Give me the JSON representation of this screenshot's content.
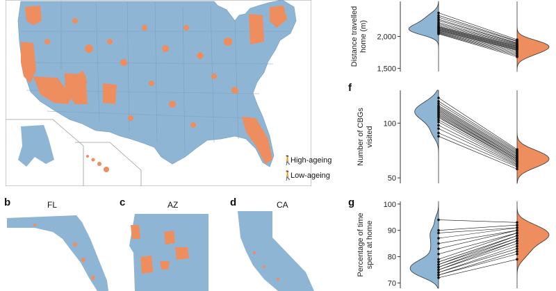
{
  "colors": {
    "high": "#ee8d5e",
    "low": "#8fb5d4",
    "line": "#111111",
    "map_border": "#9ab3c5"
  },
  "map_panel": {
    "legend": {
      "high_label": "High-ageing",
      "low_label": "Low-ageing",
      "high_icon": "walking-person-icon",
      "low_icon": "walking-person-icon"
    }
  },
  "inset_maps": [
    {
      "letter": "b",
      "title": "FL"
    },
    {
      "letter": "c",
      "title": "AZ"
    },
    {
      "letter": "d",
      "title": "CA"
    }
  ],
  "chart_data": [
    {
      "type": "scatter",
      "panel": "",
      "ylabel": "Distance travelled from home (m)",
      "ylabel_lines": [
        "Distance travelled",
        "home (m)"
      ],
      "yticks": [
        1500,
        2000
      ],
      "ytick_labels": [
        "1,500",
        "2,000"
      ],
      "ylim": [
        1450,
        2550
      ],
      "groups": [
        "High-ageing",
        "Low-ageing"
      ],
      "left_values": [
        2370,
        2330,
        2300,
        2270,
        2250,
        2220,
        2200,
        2180,
        2160,
        2150,
        2140,
        2130,
        2120,
        2110,
        2100,
        2090,
        2080,
        2070,
        2060,
        2050,
        2040
      ],
      "right_values": [
        1950,
        1930,
        1920,
        1900,
        1890,
        1880,
        1870,
        1860,
        1850,
        1840,
        1830,
        1820,
        1810,
        1800,
        1790,
        1780,
        1760,
        1740,
        1720,
        1700,
        1680
      ]
    },
    {
      "type": "scatter",
      "panel": "f",
      "ylabel": "Number of CBGs visited",
      "ylabel_lines": [
        "Number of CBGs",
        "visited"
      ],
      "yticks": [
        50,
        100
      ],
      "ytick_labels": [
        "50",
        "100"
      ],
      "ylim": [
        45,
        130
      ],
      "groups": [
        "High-ageing",
        "Low-ageing"
      ],
      "left_values": [
        123,
        120,
        118,
        116,
        115,
        114,
        113,
        112,
        111,
        110,
        109,
        108,
        107,
        106,
        105,
        103,
        101,
        98,
        95,
        91,
        88
      ],
      "right_values": [
        76,
        75,
        74,
        73,
        72,
        71,
        70,
        69,
        69,
        68,
        67,
        67,
        66,
        65,
        65,
        64,
        63,
        62,
        61,
        60,
        58
      ]
    },
    {
      "type": "scatter",
      "panel": "g",
      "ylabel": "Percentage of time spent at home",
      "ylabel_lines": [
        "Percentage of time",
        "spent at home"
      ],
      "yticks": [
        70,
        80,
        90,
        100
      ],
      "ytick_labels": [
        "70",
        "80",
        "90",
        "100"
      ],
      "ylim": [
        68,
        101
      ],
      "groups": [
        "High-ageing",
        "Low-ageing"
      ],
      "left_values": [
        94,
        90,
        89,
        87,
        85,
        83,
        81,
        79,
        78,
        78,
        77,
        77,
        76,
        76,
        75,
        75,
        74,
        74,
        73,
        73,
        72
      ],
      "right_values": [
        93,
        92,
        91,
        91,
        90,
        90,
        89,
        89,
        88,
        88,
        88,
        87,
        87,
        86,
        86,
        85,
        84,
        83,
        82,
        81,
        79
      ]
    }
  ]
}
